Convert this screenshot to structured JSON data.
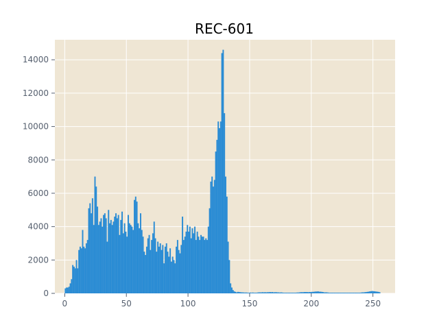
{
  "chart_data": {
    "type": "bar",
    "title": "REC-601",
    "xlabel": "",
    "ylabel": "",
    "xlim": [
      -8,
      268
    ],
    "ylim": [
      0,
      15200
    ],
    "grid": true,
    "x_ticks": [
      0,
      50,
      100,
      150,
      200,
      250
    ],
    "x_tick_labels": [
      "0",
      "50",
      "100",
      "150",
      "200",
      "250"
    ],
    "y_ticks": [
      0,
      2000,
      4000,
      6000,
      8000,
      10000,
      12000,
      14000
    ],
    "y_tick_labels": [
      "0",
      "2000",
      "4000",
      "6000",
      "8000",
      "10000",
      "12000",
      "14000"
    ],
    "bin_start": 0,
    "bin_width": 1,
    "values": [
      300,
      350,
      350,
      400,
      600,
      850,
      1700,
      1600,
      1500,
      2000,
      1500,
      2600,
      2800,
      2700,
      3800,
      2800,
      2700,
      3000,
      3200,
      5100,
      5400,
      4800,
      5700,
      4100,
      7000,
      6400,
      5200,
      4100,
      4300,
      4500,
      4000,
      4700,
      4800,
      4500,
      3100,
      5000,
      4200,
      4400,
      4100,
      4300,
      4600,
      4800,
      4500,
      4700,
      3500,
      4400,
      4900,
      3600,
      4200,
      3700,
      3400,
      4700,
      4200,
      4100,
      4000,
      3800,
      5600,
      5800,
      5500,
      4200,
      3900,
      4800,
      3800,
      3400,
      2500,
      2300,
      2800,
      3300,
      3500,
      2600,
      3200,
      3600,
      4300,
      3300,
      2500,
      3100,
      2800,
      3000,
      2600,
      2900,
      1800,
      2800,
      3000,
      2500,
      2200,
      2700,
      1900,
      2200,
      2000,
      1800,
      2800,
      3200,
      2600,
      2400,
      2900,
      4600,
      3200,
      3400,
      3700,
      4100,
      3700,
      4000,
      3300,
      3900,
      3600,
      4000,
      3200,
      3700,
      3400,
      3200,
      3500,
      3400,
      3400,
      3200,
      3300,
      3200,
      4000,
      5100,
      6700,
      7000,
      6400,
      6800,
      8500,
      9200,
      10300,
      9900,
      10300,
      14400,
      14600,
      10800,
      7000,
      5800,
      3100,
      2000,
      600,
      350,
      200,
      120,
      90,
      60,
      90,
      80,
      70,
      60,
      60,
      50,
      50,
      50,
      40,
      40,
      50,
      40,
      50,
      40,
      40,
      40,
      50,
      60,
      60,
      60,
      70,
      60,
      70,
      60,
      70,
      70,
      80,
      70,
      80,
      60,
      70,
      70,
      60,
      60,
      50,
      60,
      50,
      40,
      40,
      40,
      40,
      40,
      40,
      40,
      40,
      40,
      40,
      40,
      50,
      50,
      60,
      70,
      70,
      70,
      80,
      80,
      80,
      70,
      80,
      80,
      90,
      90,
      100,
      110,
      110,
      120,
      100,
      100,
      90,
      80,
      60,
      60,
      60,
      50,
      40,
      40,
      40,
      40,
      40,
      40,
      40,
      40,
      40,
      40,
      40,
      40,
      40,
      40,
      40,
      40,
      40,
      40,
      40,
      40,
      40,
      40,
      40,
      40,
      40,
      40,
      50,
      60,
      60,
      70,
      80,
      90,
      100,
      120,
      130,
      140,
      130,
      120,
      110,
      100,
      90,
      70
    ]
  },
  "colors": {
    "background": "#efe6d4",
    "bar": "#2b8cd4",
    "grid": "#ffffff",
    "tick_text": "#555f6e",
    "tick_mark": "#555f6e"
  }
}
